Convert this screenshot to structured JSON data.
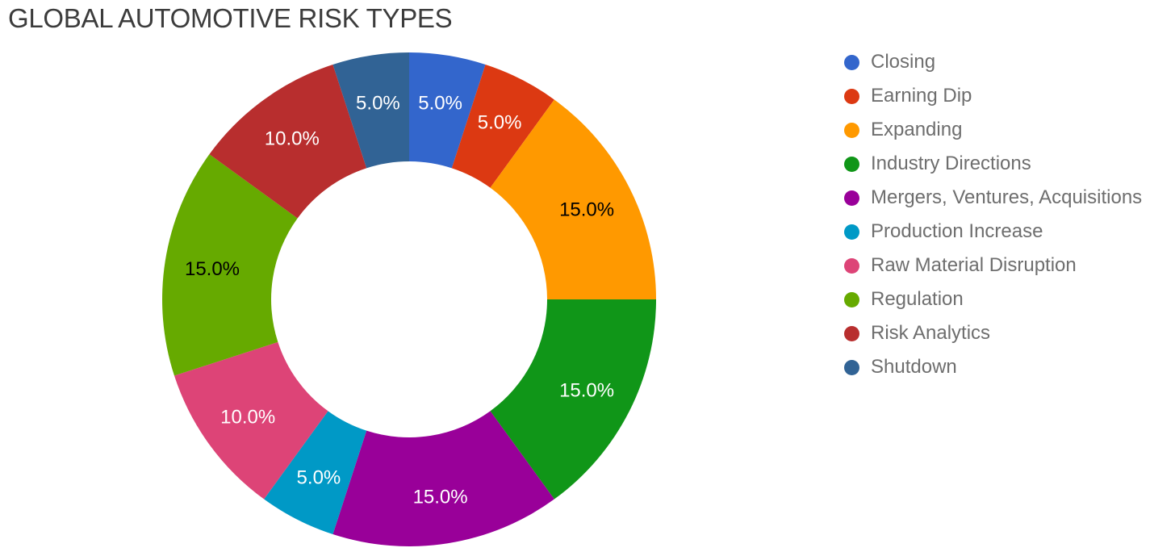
{
  "title": "GLOBAL AUTOMOTIVE RISK TYPES",
  "chart_data": {
    "type": "pie",
    "title": "GLOBAL AUTOMOTIVE RISK TYPES",
    "donut": true,
    "hole_ratio": 0.56,
    "start_angle_deg": 0,
    "direction": "clockwise",
    "legend_position": "right",
    "total": 100,
    "slices": [
      {
        "label": "Closing",
        "value": 5,
        "pct_label": "5.0%",
        "color": "#3366cc",
        "text_color": "#ffffff"
      },
      {
        "label": "Earning Dip",
        "value": 5,
        "pct_label": "5.0%",
        "color": "#dc3912",
        "text_color": "#ffffff"
      },
      {
        "label": "Expanding",
        "value": 15,
        "pct_label": "15.0%",
        "color": "#ff9900",
        "text_color": "#000000"
      },
      {
        "label": "Industry Directions",
        "value": 15,
        "pct_label": "15.0%",
        "color": "#109618",
        "text_color": "#ffffff"
      },
      {
        "label": "Mergers, Ventures, Acquisitions",
        "value": 15,
        "pct_label": "15.0%",
        "color": "#990099",
        "text_color": "#ffffff"
      },
      {
        "label": "Production Increase",
        "value": 5,
        "pct_label": "5.0%",
        "color": "#0099c6",
        "text_color": "#ffffff"
      },
      {
        "label": "Raw Material Disruption",
        "value": 10,
        "pct_label": "10.0%",
        "color": "#dd4477",
        "text_color": "#ffffff"
      },
      {
        "label": "Regulation",
        "value": 15,
        "pct_label": "15.0%",
        "color": "#66aa00",
        "text_color": "#000000"
      },
      {
        "label": "Risk Analytics",
        "value": 10,
        "pct_label": "10.0%",
        "color": "#b82e2e",
        "text_color": "#ffffff"
      },
      {
        "label": "Shutdown",
        "value": 5,
        "pct_label": "5.0%",
        "color": "#316395",
        "text_color": "#ffffff"
      }
    ]
  }
}
